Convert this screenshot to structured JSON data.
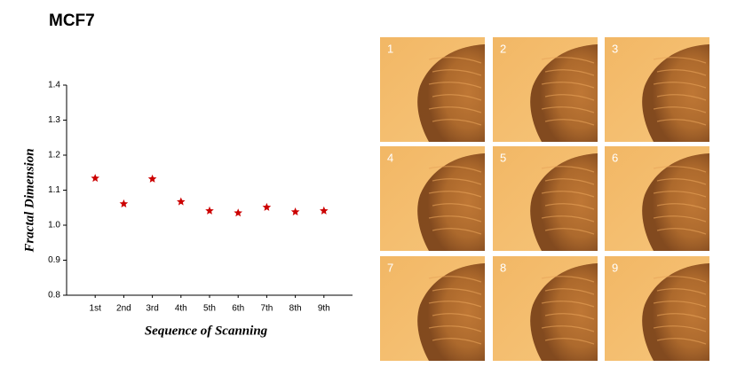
{
  "chart_data": {
    "type": "scatter",
    "title": "MCF7",
    "x_label": "Sequence of Scanning",
    "y_label": "Fractal Dimension",
    "categories": [
      "1st",
      "2nd",
      "3rd",
      "4th",
      "5th",
      "6th",
      "7th",
      "8th",
      "9th"
    ],
    "values": [
      1.134,
      1.061,
      1.132,
      1.067,
      1.041,
      1.035,
      1.051,
      1.038,
      1.041
    ],
    "color": "#cc0000",
    "marker": "star",
    "ylim": [
      0.8,
      1.4
    ],
    "yticks": [
      0.8,
      0.9,
      {
        "value": 1,
        "label": "1.0"
      },
      1.1,
      1.2,
      1.3,
      1.4
    ]
  },
  "panels": {
    "labels": [
      "1",
      "2",
      "3",
      "4",
      "5",
      "6",
      "7",
      "8",
      "9"
    ]
  }
}
